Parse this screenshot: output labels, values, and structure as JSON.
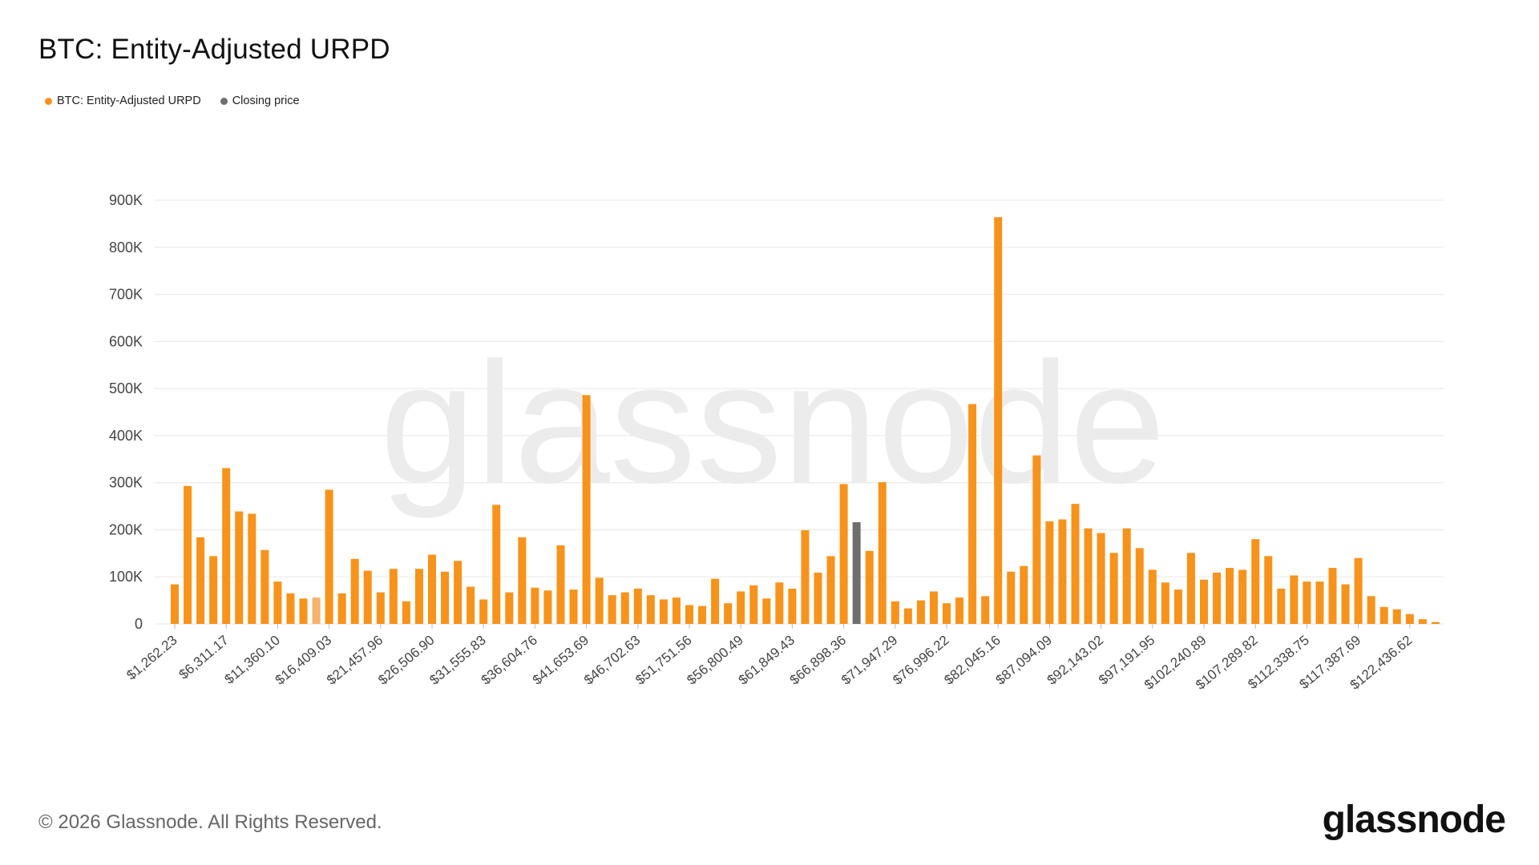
{
  "title": "BTC: Entity-Adjusted URPD",
  "legend": [
    {
      "label": "BTC: Entity-Adjusted URPD",
      "color": "#F7931A"
    },
    {
      "label": "Closing price",
      "color": "#6E6E6E"
    }
  ],
  "watermark": "glassnode",
  "footer": {
    "copyright": "© 2026 Glassnode. All Rights Reserved.",
    "logo": "glassnode"
  },
  "chart_data": {
    "type": "bar",
    "title": "BTC: Entity-Adjusted URPD",
    "xlabel": "",
    "ylabel": "",
    "ylim": [
      0,
      900000
    ],
    "grid": true,
    "legend_position": "top-left",
    "y_tick_labels": [
      "0",
      "100K",
      "200K",
      "300K",
      "400K",
      "500K",
      "600K",
      "700K",
      "800K",
      "900K"
    ],
    "x_tick_labels": [
      "$1,262.23",
      "$6,311.17",
      "$11,360.10",
      "$16,409.03",
      "$21,457.96",
      "$26,506.90",
      "$31,555.83",
      "$36,604.76",
      "$41,653.69",
      "$46,702.63",
      "$51,751.56",
      "$56,800.49",
      "$61,849.43",
      "$66,898.36",
      "$71,947.29",
      "$76,996.22",
      "$82,045.16",
      "$87,094.09",
      "$92,143.02",
      "$97,191.95",
      "$102,240.89",
      "$107,289.82",
      "$112,338.75",
      "$117,387.69",
      "$122,436.62"
    ],
    "series": [
      {
        "name": "BTC: Entity-Adjusted URPD",
        "color": "#F7931A",
        "highlight_color": "#F6B26B",
        "values": [
          84000,
          293000,
          184000,
          144000,
          331000,
          239000,
          234000,
          157000,
          90000,
          65000,
          54000,
          56000,
          285000,
          65000,
          138000,
          113000,
          67000,
          117000,
          48000,
          117000,
          147000,
          111000,
          134000,
          79000,
          52000,
          253000,
          67000,
          184000,
          77000,
          71000,
          167000,
          73000,
          486000,
          98000,
          61000,
          67000,
          75000,
          61000,
          52000,
          56000,
          40000,
          38000,
          96000,
          44000,
          69000,
          82000,
          54000,
          88000,
          75000,
          199000,
          109000,
          144000,
          297000,
          216000,
          155000,
          301000,
          48000,
          33000,
          50000,
          69000,
          44000,
          56000,
          467000,
          59000,
          864000,
          111000,
          123000,
          358000,
          218000,
          222000,
          255000,
          203000,
          193000,
          151000,
          203000,
          161000,
          115000,
          88000,
          73000,
          151000,
          94000,
          109000,
          119000,
          115000,
          180000,
          144000,
          75000,
          103000,
          90000,
          90000,
          119000,
          84000,
          140000,
          59000,
          36000,
          31000,
          21000,
          10000,
          4000
        ]
      }
    ],
    "closing_price_bar_index": 53,
    "closing_price_color": "#6E6E6E",
    "highlighted_bar_index": 11
  }
}
